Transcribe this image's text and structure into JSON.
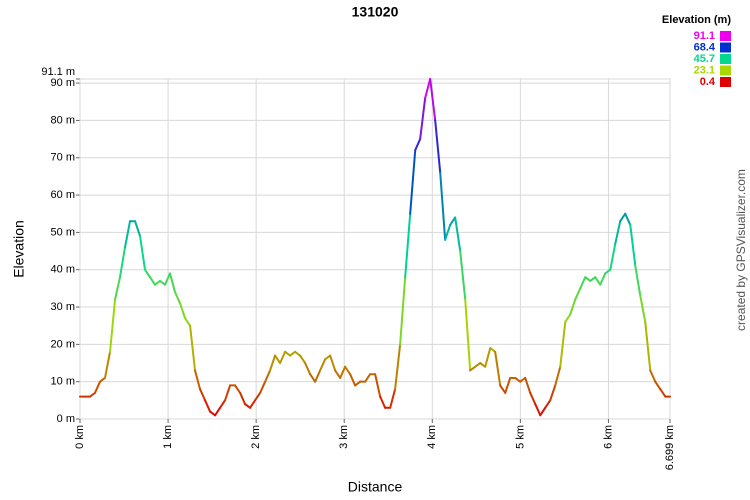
{
  "chart_data": {
    "type": "line",
    "title": "131020",
    "x_label": "Distance",
    "y_label": "Elevation",
    "credit": "created by GPSVisualizer.com",
    "x": [
      0,
      0.057,
      0.114,
      0.17,
      0.227,
      0.284,
      0.341,
      0.398,
      0.454,
      0.511,
      0.568,
      0.625,
      0.682,
      0.738,
      0.795,
      0.852,
      0.909,
      0.966,
      1.022,
      1.079,
      1.136,
      1.193,
      1.25,
      1.306,
      1.363,
      1.42,
      1.477,
      1.534,
      1.59,
      1.647,
      1.704,
      1.761,
      1.818,
      1.874,
      1.931,
      1.988,
      2.045,
      2.102,
      2.158,
      2.215,
      2.272,
      2.329,
      2.386,
      2.442,
      2.499,
      2.556,
      2.613,
      2.67,
      2.726,
      2.783,
      2.84,
      2.897,
      2.954,
      3.01,
      3.067,
      3.124,
      3.181,
      3.238,
      3.294,
      3.351,
      3.408,
      3.465,
      3.522,
      3.578,
      3.635,
      3.692,
      3.749,
      3.806,
      3.862,
      3.919,
      3.976,
      4.033,
      4.09,
      4.146,
      4.203,
      4.26,
      4.317,
      4.374,
      4.43,
      4.487,
      4.544,
      4.601,
      4.658,
      4.714,
      4.771,
      4.828,
      4.885,
      4.942,
      4.998,
      5.055,
      5.112,
      5.169,
      5.226,
      5.282,
      5.339,
      5.396,
      5.453,
      5.51,
      5.566,
      5.623,
      5.68,
      5.737,
      5.794,
      5.85,
      5.907,
      5.964,
      6.021,
      6.078,
      6.134,
      6.191,
      6.248,
      6.305,
      6.362,
      6.418,
      6.475,
      6.532,
      6.589,
      6.646,
      6.699
    ],
    "values": [
      6,
      6,
      6,
      7,
      10,
      11,
      18,
      32,
      38,
      46,
      53,
      53,
      49,
      40,
      38,
      36,
      37,
      36,
      39,
      34,
      31,
      27,
      25,
      13,
      8,
      5,
      2,
      1,
      3,
      5,
      9,
      9,
      7,
      4,
      3,
      5,
      7,
      10,
      13,
      17,
      15,
      18,
      17,
      18,
      17,
      15,
      12,
      10,
      13,
      16,
      17,
      13,
      11,
      14,
      12,
      9,
      10,
      10,
      12,
      12,
      6,
      3,
      3,
      8,
      20,
      38,
      55,
      72,
      75,
      86,
      91.1,
      80,
      66,
      48,
      52,
      54,
      45,
      32,
      13,
      14,
      15,
      14,
      19,
      18,
      9,
      7,
      11,
      11,
      10,
      11,
      7,
      4,
      1,
      3,
      5,
      9,
      14,
      26,
      28,
      32,
      35,
      38,
      37,
      38,
      36,
      39,
      40,
      47,
      53,
      55,
      52,
      41,
      33,
      26,
      13,
      10,
      8,
      6,
      6
    ],
    "xlim": [
      0,
      6.699
    ],
    "ylim": [
      0,
      91.1
    ],
    "xticks": [
      {
        "value": 0,
        "label": "0 km"
      },
      {
        "value": 1,
        "label": "1 km"
      },
      {
        "value": 2,
        "label": "2 km"
      },
      {
        "value": 3,
        "label": "3 km"
      },
      {
        "value": 4,
        "label": "4 km"
      },
      {
        "value": 5,
        "label": "5 km"
      },
      {
        "value": 6,
        "label": "6 km"
      },
      {
        "value": 6.699,
        "label": "6.699 km"
      }
    ],
    "yticks": [
      {
        "value": 0,
        "label": "0 m"
      },
      {
        "value": 10,
        "label": "10 m"
      },
      {
        "value": 20,
        "label": "20 m"
      },
      {
        "value": 30,
        "label": "30 m"
      },
      {
        "value": 40,
        "label": "40 m"
      },
      {
        "value": 50,
        "label": "50 m"
      },
      {
        "value": 60,
        "label": "60 m"
      },
      {
        "value": 70,
        "label": "70 m"
      },
      {
        "value": 80,
        "label": "80 m"
      },
      {
        "value": 90,
        "label": "90 m"
      },
      {
        "value": 91.1,
        "label": "91.1 m"
      }
    ],
    "grid": true,
    "legend": {
      "title": "Elevation (m)",
      "position": "top-right",
      "scale": [
        {
          "value": 91.1,
          "color": "#ee00ee"
        },
        {
          "value": 68.4,
          "color": "#0030d0"
        },
        {
          "value": 45.7,
          "color": "#00d890"
        },
        {
          "value": 23.1,
          "color": "#a8d800"
        },
        {
          "value": 0.4,
          "color": "#dd0000"
        }
      ]
    }
  }
}
